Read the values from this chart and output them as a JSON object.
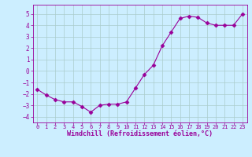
{
  "x": [
    0,
    1,
    2,
    3,
    4,
    5,
    6,
    7,
    8,
    9,
    10,
    11,
    12,
    13,
    14,
    15,
    16,
    17,
    18,
    19,
    20,
    21,
    22,
    23
  ],
  "y": [
    -1.6,
    -2.1,
    -2.5,
    -2.7,
    -2.7,
    -3.1,
    -3.6,
    -3.0,
    -2.9,
    -2.9,
    -2.7,
    -1.5,
    -0.3,
    0.5,
    2.2,
    3.4,
    4.6,
    4.8,
    4.7,
    4.2,
    4.0,
    4.0,
    4.0,
    5.0
  ],
  "line_color": "#990099",
  "marker": "D",
  "marker_size": 2.5,
  "bg_color": "#cceeff",
  "grid_color": "#aacccc",
  "xlabel": "Windchill (Refroidissement éolien,°C)",
  "xlabel_color": "#990099",
  "tick_color": "#990099",
  "label_color": "#990099",
  "ylim": [
    -4.5,
    5.8
  ],
  "xlim": [
    -0.5,
    23.5
  ],
  "yticks": [
    -4,
    -3,
    -2,
    -1,
    0,
    1,
    2,
    3,
    4,
    5
  ],
  "xticks": [
    0,
    1,
    2,
    3,
    4,
    5,
    6,
    7,
    8,
    9,
    10,
    11,
    12,
    13,
    14,
    15,
    16,
    17,
    18,
    19,
    20,
    21,
    22,
    23
  ],
  "figsize": [
    3.2,
    2.0
  ],
  "dpi": 100
}
